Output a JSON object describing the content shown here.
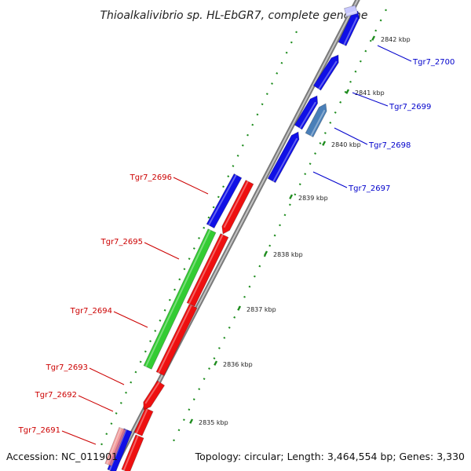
{
  "title": "Thioalkalivibrio sp. HL-EbGR7, complete genome",
  "accession": "Accession: NC_011901",
  "topology": "Topology: circular; Length: 3,464,554 bp; Genes: 3,330",
  "colors": {
    "backbone": "#a0a0a0",
    "forward_gene": "#0000ee",
    "reverse_gene": "#ee0000",
    "rna_gene": "#33cc33",
    "ticks": "#1e8c1e",
    "forward_label": "#0000cc",
    "reverse_label": "#cc0000"
  },
  "kbp_marks": [
    {
      "kbp": 2842,
      "label": "2842 kbp"
    },
    {
      "kbp": 2841,
      "label": "2841 kbp"
    },
    {
      "kbp": 2840,
      "label": "2840 kbp"
    },
    {
      "kbp": 2839,
      "label": "2839 kbp"
    },
    {
      "kbp": 2838,
      "label": "2838 kbp"
    },
    {
      "kbp": 2837,
      "label": "2837 kbp"
    },
    {
      "kbp": 2836,
      "label": "2836 kbp"
    },
    {
      "kbp": 2835,
      "label": "2835 kbp"
    }
  ],
  "genes_forward": [
    {
      "label": "Tgr7_2700"
    },
    {
      "label": "Tgr7_2699"
    },
    {
      "label": "Tgr7_2698"
    },
    {
      "label": "Tgr7_2697"
    }
  ],
  "genes_reverse": [
    {
      "label": "Tgr7_2696"
    },
    {
      "label": "Tgr7_2695"
    },
    {
      "label": "Tgr7_2694"
    },
    {
      "label": "Tgr7_2693"
    },
    {
      "label": "Tgr7_2692"
    },
    {
      "label": "Tgr7_2691"
    }
  ]
}
